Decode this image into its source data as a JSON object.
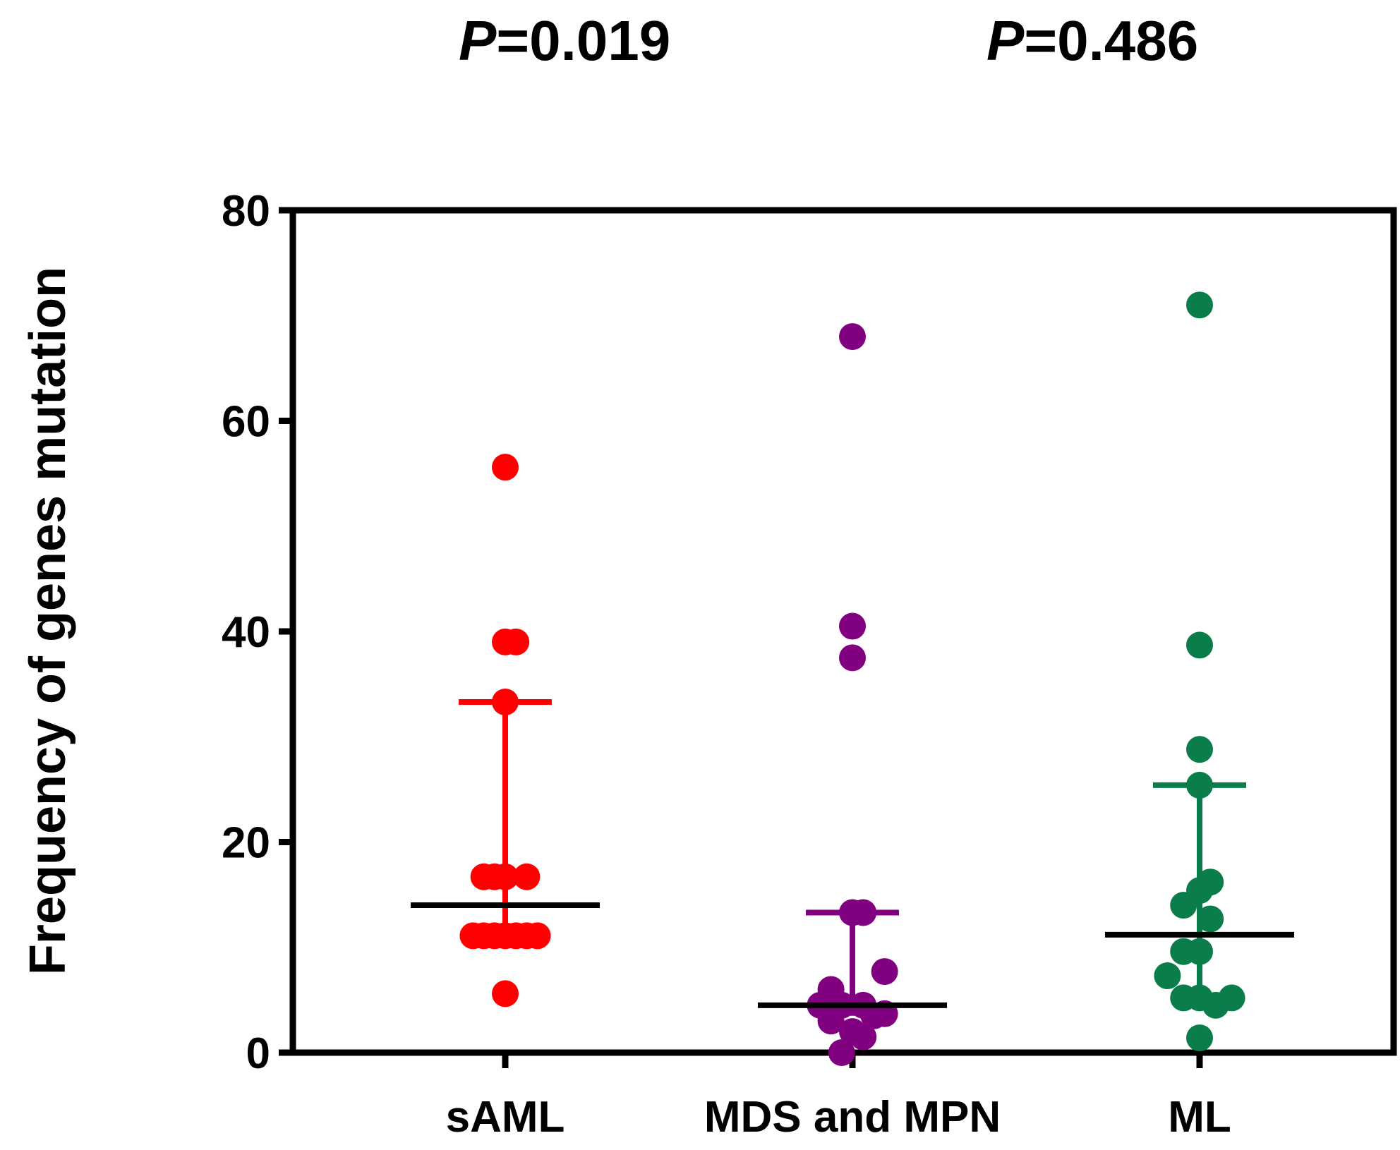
{
  "chart_data": {
    "type": "scatter",
    "ylabel": "Frequency of genes mutation",
    "xlabel": "",
    "ylim": [
      0,
      80
    ],
    "yticks": [
      0,
      20,
      40,
      60,
      80
    ],
    "categories": [
      "sAML",
      "MDS and MPN",
      "ML"
    ],
    "annotations": [
      {
        "label": "P",
        "value": "=0.019"
      },
      {
        "label": "P",
        "value": "=0.486"
      }
    ],
    "series": [
      {
        "category": "sAML",
        "color": "#ff0000",
        "median": 14.0,
        "iqr": [
          11.0,
          33.3
        ],
        "points": [
          {
            "dx": 0.0,
            "y": 55.6
          },
          {
            "dx": 0.0,
            "y": 39.0
          },
          {
            "dx": 0.4,
            "y": 39.0
          },
          {
            "dx": 0.0,
            "y": 33.3
          },
          {
            "dx": -0.8,
            "y": 16.7
          },
          {
            "dx": -0.4,
            "y": 16.7
          },
          {
            "dx": 0.0,
            "y": 16.7
          },
          {
            "dx": 0.8,
            "y": 16.7
          },
          {
            "dx": -1.2,
            "y": 11.1
          },
          {
            "dx": -0.8,
            "y": 11.1
          },
          {
            "dx": -0.4,
            "y": 11.1
          },
          {
            "dx": 0.0,
            "y": 11.1
          },
          {
            "dx": 0.4,
            "y": 11.1
          },
          {
            "dx": 0.8,
            "y": 11.1
          },
          {
            "dx": 1.2,
            "y": 11.1
          },
          {
            "dx": 0.0,
            "y": 5.6
          }
        ]
      },
      {
        "category": "MDS and MPN",
        "color": "#800080",
        "median": 4.5,
        "iqr": [
          3.5,
          13.3
        ],
        "points": [
          {
            "dx": 0.0,
            "y": 68.0
          },
          {
            "dx": 0.0,
            "y": 40.5
          },
          {
            "dx": 0.0,
            "y": 37.5
          },
          {
            "dx": 0.0,
            "y": 13.3
          },
          {
            "dx": 0.4,
            "y": 13.3
          },
          {
            "dx": 1.2,
            "y": 7.7
          },
          {
            "dx": -0.8,
            "y": 6.0
          },
          {
            "dx": -1.2,
            "y": 4.5
          },
          {
            "dx": -0.4,
            "y": 4.5
          },
          {
            "dx": 0.4,
            "y": 4.5
          },
          {
            "dx": 1.2,
            "y": 3.7
          },
          {
            "dx": 0.8,
            "y": 3.5
          },
          {
            "dx": -0.8,
            "y": 3.0
          },
          {
            "dx": 0.0,
            "y": 2.0
          },
          {
            "dx": 0.4,
            "y": 1.5
          },
          {
            "dx": -0.4,
            "y": 0.0
          }
        ]
      },
      {
        "category": "ML",
        "color": "#0a7d4a",
        "median": 11.2,
        "iqr": [
          5.0,
          25.4
        ],
        "points": [
          {
            "dx": 0.0,
            "y": 71.0
          },
          {
            "dx": 0.0,
            "y": 38.7
          },
          {
            "dx": 0.0,
            "y": 28.8
          },
          {
            "dx": 0.0,
            "y": 25.4
          },
          {
            "dx": 0.4,
            "y": 16.2
          },
          {
            "dx": 0.0,
            "y": 15.4
          },
          {
            "dx": -0.6,
            "y": 14.0
          },
          {
            "dx": 0.4,
            "y": 12.7
          },
          {
            "dx": -0.6,
            "y": 9.6
          },
          {
            "dx": 0.0,
            "y": 9.6
          },
          {
            "dx": -1.2,
            "y": 7.3
          },
          {
            "dx": -0.6,
            "y": 5.2
          },
          {
            "dx": 0.0,
            "y": 5.2
          },
          {
            "dx": 1.2,
            "y": 5.2
          },
          {
            "dx": 0.6,
            "y": 4.5
          },
          {
            "dx": 0.0,
            "y": 1.4
          }
        ]
      }
    ]
  }
}
